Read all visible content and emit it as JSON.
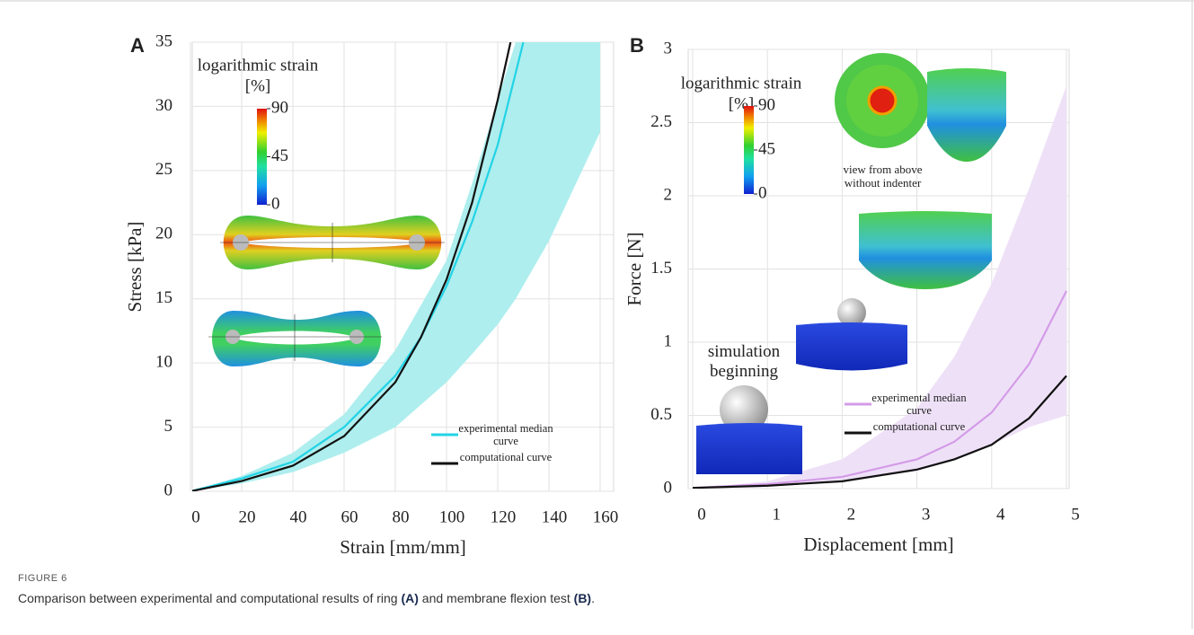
{
  "chart_data": [
    {
      "type": "line",
      "panel": "A",
      "x_label": "Strain [mm/mm]",
      "y_label": "Stress [kPa]",
      "xlim": [
        0,
        160
      ],
      "xticks": [
        0,
        20,
        40,
        60,
        80,
        100,
        120,
        140,
        160
      ],
      "ylim": [
        0,
        35
      ],
      "yticks": [
        0,
        5,
        10,
        15,
        20,
        25,
        30,
        35
      ],
      "grid": true,
      "band": {
        "color": "#aeeeee",
        "x": [
          0,
          20,
          40,
          60,
          80,
          100,
          110,
          120,
          127,
          140,
          160
        ],
        "lower": [
          0,
          0.6,
          1.5,
          3,
          5,
          8.5,
          10.7,
          13,
          15,
          19.5,
          28
        ],
        "upper": [
          0,
          1.2,
          3,
          6,
          11,
          18,
          24,
          30.5,
          35,
          35,
          35
        ]
      },
      "series": [
        {
          "name": "experimental median curve",
          "color": "#22d3e6",
          "x": [
            0,
            20,
            40,
            60,
            80,
            90,
            100,
            110,
            120,
            130
          ],
          "values": [
            0,
            1,
            2.3,
            5,
            9,
            12,
            16,
            21,
            27,
            35
          ]
        },
        {
          "name": "computational curve",
          "color": "#111111",
          "x": [
            0,
            20,
            40,
            60,
            80,
            90,
            100,
            110,
            120,
            125
          ],
          "values": [
            0,
            0.8,
            2,
            4.3,
            8.5,
            12,
            16.5,
            22.5,
            30.5,
            35
          ]
        }
      ],
      "colorbar": {
        "title": "logarithmic strain",
        "unit": "[%]",
        "ticks": [
          0,
          45,
          90
        ]
      }
    },
    {
      "type": "line",
      "panel": "B",
      "x_label": "Displacement [mm]",
      "y_label": "Force [N]",
      "xlim": [
        0,
        5
      ],
      "xticks": [
        0,
        1,
        2,
        3,
        4,
        5
      ],
      "ylim": [
        0,
        3
      ],
      "yticks": [
        0,
        0.5,
        1,
        1.5,
        2,
        2.5,
        3
      ],
      "grid": true,
      "band": {
        "color": "#eee1f7",
        "x": [
          0,
          1,
          2,
          3,
          3.5,
          4,
          4.5,
          5
        ],
        "lower": [
          0,
          0.01,
          0.05,
          0.12,
          0.2,
          0.3,
          0.42,
          0.5
        ],
        "upper": [
          0,
          0.05,
          0.2,
          0.55,
          0.9,
          1.4,
          2.05,
          2.75
        ]
      },
      "series": [
        {
          "name": "experimental median curve",
          "color": "#d49be8",
          "x": [
            0,
            1,
            2,
            3,
            3.5,
            4,
            4.5,
            5
          ],
          "values": [
            0.005,
            0.03,
            0.08,
            0.2,
            0.32,
            0.52,
            0.85,
            1.35
          ]
        },
        {
          "name": "computational curve",
          "color": "#111111",
          "x": [
            0,
            1,
            2,
            3,
            3.5,
            4,
            4.5,
            5
          ],
          "values": [
            0.005,
            0.02,
            0.05,
            0.13,
            0.2,
            0.3,
            0.48,
            0.77
          ]
        }
      ],
      "colorbar": {
        "title": "logarithmic strain",
        "unit": "[%]",
        "ticks": [
          0,
          45,
          90
        ]
      },
      "annotations": [
        "view from above without indenter",
        "simulation beginning"
      ]
    }
  ],
  "caption": {
    "label": "FIGURE 6",
    "parts": [
      {
        "text": "Comparison between experimental and computational results of ring ",
        "bold": false
      },
      {
        "text": "(A)",
        "bold": true
      },
      {
        "text": " and membrane flexion test ",
        "bold": false
      },
      {
        "text": "(B)",
        "bold": true
      },
      {
        "text": ".",
        "bold": false
      }
    ]
  }
}
